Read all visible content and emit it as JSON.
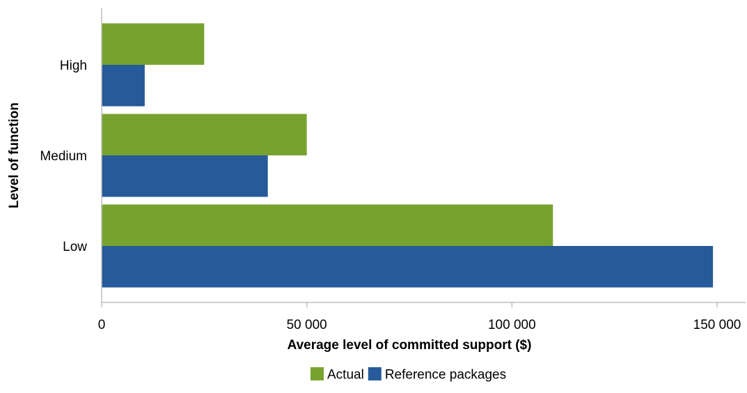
{
  "chart_data": {
    "type": "bar",
    "orientation": "horizontal",
    "categories": [
      "High",
      "Medium",
      "Low"
    ],
    "series": [
      {
        "name": "Actual",
        "color": "#78A22F",
        "values": [
          25000,
          50000,
          110000
        ]
      },
      {
        "name": "Reference packages",
        "color": "#265A9A",
        "values": [
          10500,
          40500,
          149000
        ]
      }
    ],
    "xlabel": "Average level of committed support ($)",
    "ylabel": "Level of function",
    "xlim": [
      0,
      150000
    ],
    "xticks": [
      0,
      50000,
      100000,
      150000
    ],
    "xtick_labels": [
      "0",
      "50 000",
      "100 000",
      "150 000"
    ],
    "grid": false,
    "legend_position": "bottom",
    "axis_color": "#BFBFBF"
  }
}
